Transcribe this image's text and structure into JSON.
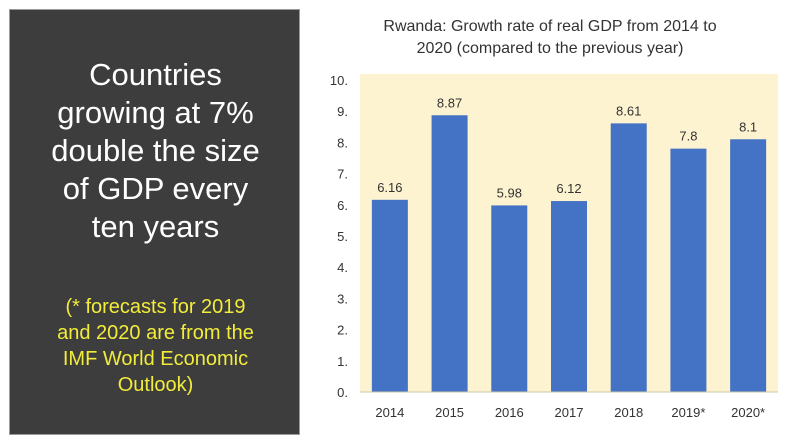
{
  "left_panel": {
    "headline_lines": [
      "Countries",
      "growing at 7%",
      "double the size",
      "of GDP every",
      "ten years"
    ],
    "footnote_lines": [
      "(* forecasts for 2019",
      "and 2020 are from the",
      "IMF World Economic",
      "Outlook)"
    ]
  },
  "colors": {
    "panel_bg": "#3d3d3d",
    "headline": "#ffffff",
    "footnote": "#f2ec3a",
    "plot_bg": "#fdf3d0",
    "bar": "#4472c4"
  },
  "chart_data": {
    "type": "bar",
    "title_lines": [
      "Rwanda: Growth rate of real GDP from 2014 to",
      "2020 (compared to the previous year)"
    ],
    "categories": [
      "2014",
      "2015",
      "2016",
      "2017",
      "2018",
      "2019*",
      "2020*"
    ],
    "values": [
      6.16,
      8.87,
      5.98,
      6.12,
      8.61,
      7.8,
      8.1
    ],
    "data_labels": [
      "6.16",
      "8.87",
      "5.98",
      "6.12",
      "8.61",
      "7.8",
      "8.1"
    ],
    "y_ticks": [
      "0.",
      "1.",
      "2.",
      "3.",
      "4.",
      "5.",
      "6.",
      "7.",
      "8.",
      "9.",
      "10."
    ],
    "ylim": [
      0,
      10
    ],
    "grid": false,
    "legend": "none"
  }
}
